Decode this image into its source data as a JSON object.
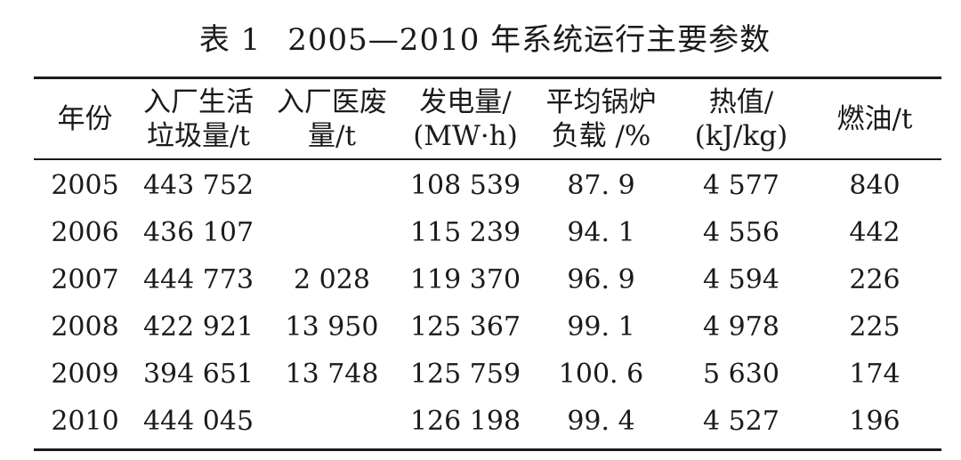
{
  "title": {
    "label": "表 1",
    "text": "2005—2010 年系统运行主要参数"
  },
  "table": {
    "headers": [
      [
        "年份"
      ],
      [
        "入厂生活",
        "垃圾量/t"
      ],
      [
        "入厂医废",
        "量/t"
      ],
      [
        "发电量/",
        "(MW·h)"
      ],
      [
        "平均锅炉",
        "负载 /%"
      ],
      [
        "热值/",
        "(kJ/kg)"
      ],
      [
        "燃油/t"
      ]
    ],
    "rows": [
      [
        "2005",
        "443 752",
        "",
        "108 539",
        "87. 9",
        "4 577",
        "840"
      ],
      [
        "2006",
        "436 107",
        "",
        "115 239",
        "94. 1",
        "4 556",
        "442"
      ],
      [
        "2007",
        "444 773",
        "2 028",
        "119 370",
        "96. 9",
        "4 594",
        "226"
      ],
      [
        "2008",
        "422 921",
        "13 950",
        "125 367",
        "99. 1",
        "4 978",
        "225"
      ],
      [
        "2009",
        "394 651",
        "13 748",
        "125 759",
        "100. 6",
        "5 630",
        "174"
      ],
      [
        "2010",
        "444 045",
        "",
        "126 198",
        "99. 4",
        "4 527",
        "196"
      ]
    ]
  }
}
